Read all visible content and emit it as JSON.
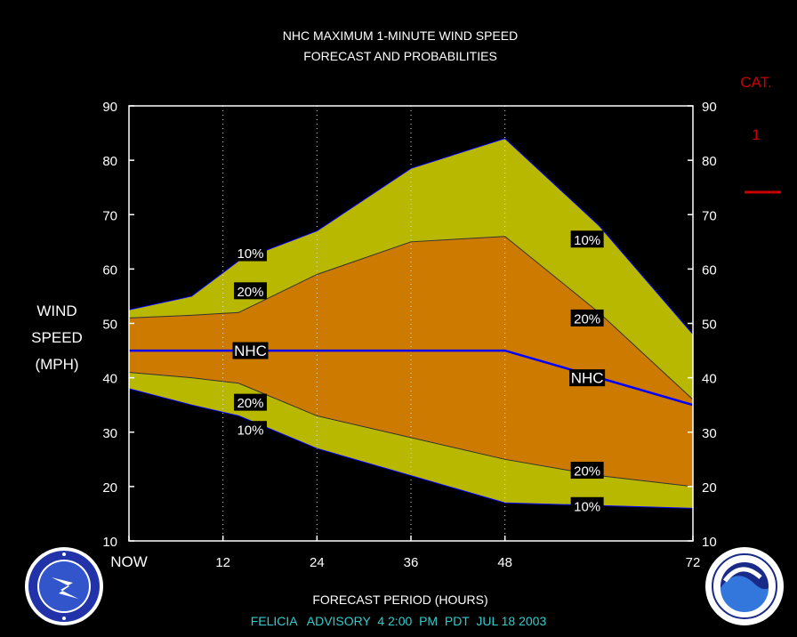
{
  "chart_data": {
    "type": "area",
    "title": "NHC MAXIMUM 1-MINUTE WIND SPEED",
    "subtitle": "FORECAST AND PROBABILITIES",
    "ylabel_lines": [
      "WIND",
      "SPEED",
      "(MPH)"
    ],
    "xlabel": "FORECAST PERIOD (HOURS)",
    "ylim": [
      10,
      90
    ],
    "yticks": [
      10,
      20,
      30,
      40,
      50,
      60,
      70,
      80,
      90
    ],
    "xlim": [
      0,
      72
    ],
    "xticks": [
      {
        "value": 0,
        "label": "NOW"
      },
      {
        "value": 12,
        "label": "12"
      },
      {
        "value": 24,
        "label": "24"
      },
      {
        "value": 36,
        "label": "36"
      },
      {
        "value": 48,
        "label": "48"
      },
      {
        "value": 72,
        "label": "72"
      }
    ],
    "x": [
      0,
      8,
      14,
      24,
      36,
      48,
      60,
      72
    ],
    "series": [
      {
        "label": "10%",
        "values": [
          52.5,
          55,
          61.5,
          67,
          78.5,
          84,
          68,
          48
        ],
        "label_x": 15.5,
        "label_y": 63
      },
      {
        "label": "20%",
        "values": [
          51,
          51.5,
          52,
          59,
          65,
          66,
          52,
          36
        ],
        "label_x": 15.5,
        "label_y": 56
      },
      {
        "label": "NHC",
        "values": [
          45,
          45,
          45,
          45,
          45,
          45,
          40,
          35
        ],
        "label_x": 15.5,
        "label_y": 45
      },
      {
        "label": "20%",
        "values": [
          41,
          40,
          39,
          33,
          29,
          25,
          22,
          20
        ],
        "label_x": 15.5,
        "label_y": 35.5
      },
      {
        "label": "10%",
        "values": [
          38,
          35,
          33,
          27,
          22,
          17,
          16.5,
          16
        ],
        "label_x": 15.5,
        "label_y": 30.5
      }
    ],
    "right_labels": [
      {
        "label": "10%",
        "value": 65.5,
        "x": 58.5
      },
      {
        "label": "20%",
        "value": 51,
        "x": 58.5
      },
      {
        "label": "NHC",
        "value": 40,
        "x": 58.5
      },
      {
        "label": "20%",
        "value": 23,
        "x": 58.5
      },
      {
        "label": "10%",
        "value": 16.5,
        "x": 58.5
      }
    ],
    "category": {
      "title": "CAT.",
      "value": "1"
    },
    "colors": {
      "outer_band": "#b8b800",
      "inner_band": "#cc7a00",
      "nhc_line": "#0000ff",
      "category": "#cc0000",
      "footer": "#33cccc"
    }
  },
  "footer": "FELICIA   ADVISORY  4 2:00  PM  PDT  JUL 18 2003",
  "logos": {
    "left": "nws-logo",
    "right": "noaa-logo"
  }
}
